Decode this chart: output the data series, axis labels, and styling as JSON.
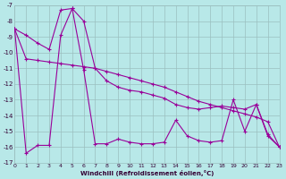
{
  "xlabel": "Windchill (Refroidissement éolien,°C)",
  "bg_color": "#b8e8e8",
  "grid_color": "#9bbfbf",
  "line_color": "#990099",
  "xlim": [
    0,
    23
  ],
  "ylim": [
    -17,
    -7
  ],
  "xticks": [
    0,
    1,
    2,
    3,
    4,
    5,
    6,
    7,
    8,
    9,
    10,
    11,
    12,
    13,
    14,
    15,
    16,
    17,
    18,
    19,
    20,
    21,
    22,
    23
  ],
  "yticks": [
    -17,
    -16,
    -15,
    -14,
    -13,
    -12,
    -11,
    -10,
    -9,
    -8,
    -7
  ],
  "series1_x": [
    0,
    1,
    2,
    3,
    4,
    5,
    6,
    7,
    8,
    9,
    10,
    11,
    12,
    13,
    14,
    15,
    16,
    17,
    18,
    19,
    20,
    21,
    22,
    23
  ],
  "series1_y": [
    -8.5,
    -16.4,
    -15.9,
    -15.9,
    -8.9,
    -7.2,
    -11.1,
    -15.8,
    -15.8,
    -15.5,
    -15.7,
    -15.8,
    -15.8,
    -15.7,
    -14.3,
    -15.3,
    -15.6,
    -15.7,
    -15.6,
    -13.0,
    -15.0,
    -13.3,
    -15.3,
    -16.0
  ],
  "series2_x": [
    0,
    1,
    2,
    3,
    4,
    5,
    6,
    7,
    8,
    9,
    10,
    11,
    12,
    13,
    14,
    15,
    16,
    17,
    18,
    19,
    20,
    21,
    22,
    23
  ],
  "series2_y": [
    -8.5,
    -8.9,
    -9.4,
    -9.8,
    -7.3,
    -7.2,
    -8.0,
    -11.0,
    -11.8,
    -12.2,
    -12.4,
    -12.5,
    -12.7,
    -12.9,
    -13.3,
    -13.5,
    -13.6,
    -13.5,
    -13.4,
    -13.5,
    -13.6,
    -13.3,
    -15.2,
    -16.0
  ],
  "series3_x": [
    0,
    1,
    2,
    3,
    4,
    5,
    6,
    7,
    8,
    9,
    10,
    11,
    12,
    13,
    14,
    15,
    16,
    17,
    18,
    19,
    20,
    21,
    22,
    23
  ],
  "series3_y": [
    -8.5,
    -10.4,
    -10.5,
    -10.6,
    -10.7,
    -10.8,
    -10.9,
    -11.0,
    -11.2,
    -11.4,
    -11.6,
    -11.8,
    -12.0,
    -12.2,
    -12.5,
    -12.8,
    -13.1,
    -13.3,
    -13.5,
    -13.7,
    -13.9,
    -14.1,
    -14.4,
    -16.0
  ]
}
